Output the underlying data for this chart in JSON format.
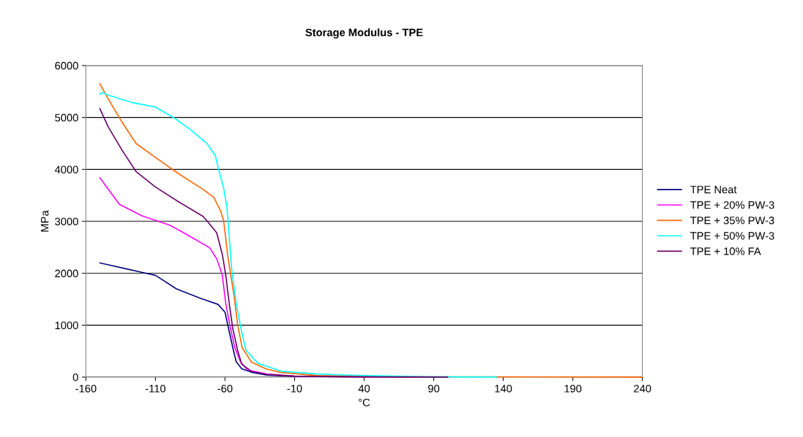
{
  "chart_data": {
    "type": "line",
    "title": "Storage Modulus - TPE",
    "xlabel": "°C",
    "ylabel": "MPa",
    "xlim": [
      -160,
      240
    ],
    "xticks": [
      -160,
      -110,
      -60,
      -10,
      40,
      90,
      140,
      190,
      240
    ],
    "ylim": [
      0,
      6000
    ],
    "yticks": [
      0,
      1000,
      2000,
      3000,
      4000,
      5000,
      6000
    ],
    "grid": "y",
    "legend": "right",
    "marker": "none",
    "line_style": "solid",
    "series": [
      {
        "name": "TPE Neat",
        "color": "#000080",
        "x": [
          -150,
          -130,
          -120,
          -110,
          -95,
          -78,
          -65,
          -60,
          -57,
          -54,
          -52,
          -48,
          -41,
          -30,
          -10,
          40,
          100
        ],
        "values": [
          2200,
          2080,
          2020,
          1960,
          1700,
          1520,
          1400,
          1250,
          880,
          520,
          300,
          160,
          95,
          40,
          15,
          5,
          0
        ]
      },
      {
        "name": "TPE + 20% PW-3",
        "color": "#ff00ff",
        "x": [
          -150,
          -136,
          -120,
          -100,
          -87,
          -71,
          -66,
          -62,
          -59.5,
          -56,
          -53,
          -49,
          -44,
          -30,
          -10,
          40,
          100
        ],
        "values": [
          3840,
          3330,
          3110,
          2930,
          2740,
          2490,
          2280,
          1970,
          1420,
          930,
          570,
          300,
          140,
          60,
          20,
          5,
          0
        ]
      },
      {
        "name": "TPE + 35% PW-3",
        "color": "#ff6600",
        "x": [
          -150,
          -144,
          -134,
          -124,
          -110,
          -93,
          -76,
          -68,
          -63,
          -61,
          -58,
          -53.5,
          -51,
          -47.7,
          -41,
          -30.7,
          -20,
          6.5,
          40,
          240
        ],
        "values": [
          5650,
          5360,
          4910,
          4500,
          4230,
          3910,
          3620,
          3460,
          3190,
          3010,
          2330,
          1560,
          1020,
          570,
          290,
          160,
          90,
          30,
          10,
          0
        ]
      },
      {
        "name": "TPE + 50% PW-3",
        "color": "#00ffff",
        "x": [
          -150,
          -148,
          -144,
          -127,
          -110,
          -97,
          -85,
          -73,
          -67,
          -64.6,
          -61,
          -58.7,
          -57.8,
          -55.3,
          -52,
          -48.5,
          -45,
          -39,
          -35.8,
          -29,
          -19,
          6.5,
          32,
          80,
          135
        ],
        "values": [
          5450,
          5480,
          5430,
          5290,
          5200,
          5000,
          4770,
          4500,
          4270,
          4000,
          3640,
          3280,
          3010,
          2100,
          1420,
          930,
          520,
          340,
          260,
          200,
          110,
          60,
          35,
          10,
          0
        ]
      },
      {
        "name": "TPE + 10% FA",
        "color": "#660066",
        "x": [
          -150,
          -144,
          -134,
          -124,
          -110,
          -93,
          -76,
          -73,
          -66,
          -62,
          -59.5,
          -57,
          -54.4,
          -51,
          -48,
          -41,
          -30,
          -10,
          40,
          100
        ],
        "values": [
          5170,
          4820,
          4370,
          3960,
          3660,
          3370,
          3100,
          3010,
          2780,
          2370,
          1970,
          1420,
          930,
          520,
          250,
          110,
          50,
          20,
          5,
          0
        ]
      }
    ]
  }
}
